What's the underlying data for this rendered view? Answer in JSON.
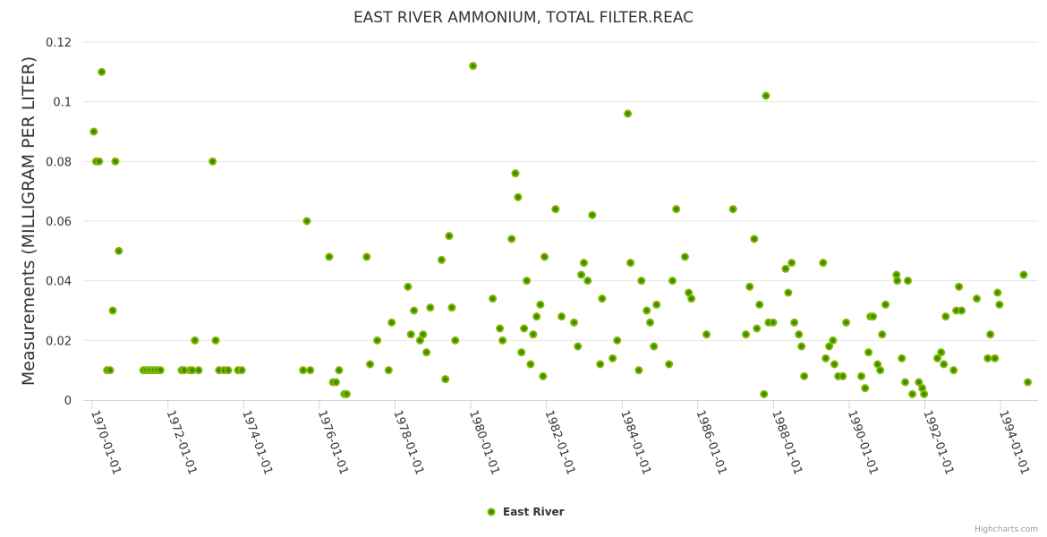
{
  "chart_data": {
    "type": "scatter",
    "title": "EAST RIVER AMMONIUM, TOTAL FILTER.REAC",
    "xlabel": "",
    "ylabel": "Measurements (MILLIGRAM PER LITER)",
    "ylim": [
      0,
      0.12
    ],
    "xlim": [
      1969.76,
      1994.99
    ],
    "yticks": [
      0,
      0.02,
      0.04,
      0.06,
      0.08,
      0.1,
      0.12
    ],
    "ytick_labels": [
      "0",
      "0.02",
      "0.04",
      "0.06",
      "0.08",
      "0.1",
      "0.12"
    ],
    "xticks": [
      1970,
      1972,
      1974,
      1976,
      1978,
      1980,
      1982,
      1984,
      1986,
      1988,
      1990,
      1992,
      1994
    ],
    "xtick_labels": [
      "1970-01-01",
      "1972-01-01",
      "1974-01-01",
      "1976-01-01",
      "1978-01-01",
      "1980-01-01",
      "1982-01-01",
      "1984-01-01",
      "1986-01-01",
      "1988-01-01",
      "1990-01-01",
      "1992-01-01",
      "1994-01-01"
    ],
    "grid": true,
    "legend_position": "bottom-center",
    "series": [
      {
        "name": "East River",
        "color": "#7fb800",
        "center_color": "#3d8c00",
        "points": [
          [
            1970.04,
            0.09
          ],
          [
            1970.1,
            0.08
          ],
          [
            1970.18,
            0.08
          ],
          [
            1970.25,
            0.11
          ],
          [
            1970.39,
            0.01
          ],
          [
            1970.47,
            0.01
          ],
          [
            1970.54,
            0.03
          ],
          [
            1970.61,
            0.08
          ],
          [
            1970.7,
            0.05
          ],
          [
            1971.35,
            0.01
          ],
          [
            1971.43,
            0.01
          ],
          [
            1971.5,
            0.01
          ],
          [
            1971.57,
            0.01
          ],
          [
            1971.64,
            0.01
          ],
          [
            1971.72,
            0.01
          ],
          [
            1971.8,
            0.01
          ],
          [
            1972.36,
            0.01
          ],
          [
            1972.43,
            0.01
          ],
          [
            1972.58,
            0.01
          ],
          [
            1972.64,
            0.01
          ],
          [
            1972.71,
            0.02
          ],
          [
            1972.81,
            0.01
          ],
          [
            1973.18,
            0.08
          ],
          [
            1973.26,
            0.02
          ],
          [
            1973.35,
            0.01
          ],
          [
            1973.48,
            0.01
          ],
          [
            1973.59,
            0.01
          ],
          [
            1973.85,
            0.01
          ],
          [
            1973.95,
            0.01
          ],
          [
            1975.57,
            0.01
          ],
          [
            1975.67,
            0.06
          ],
          [
            1975.76,
            0.01
          ],
          [
            1976.26,
            0.048
          ],
          [
            1976.36,
            0.006
          ],
          [
            1976.44,
            0.006
          ],
          [
            1976.52,
            0.01
          ],
          [
            1976.66,
            0.002
          ],
          [
            1976.72,
            0.002
          ],
          [
            1977.25,
            0.048
          ],
          [
            1977.34,
            0.012
          ],
          [
            1977.53,
            0.02
          ],
          [
            1977.83,
            0.01
          ],
          [
            1977.91,
            0.026
          ],
          [
            1978.34,
            0.038
          ],
          [
            1978.42,
            0.022
          ],
          [
            1978.5,
            0.03
          ],
          [
            1978.66,
            0.02
          ],
          [
            1978.74,
            0.022
          ],
          [
            1978.83,
            0.016
          ],
          [
            1978.93,
            0.031
          ],
          [
            1979.23,
            0.047
          ],
          [
            1979.33,
            0.007
          ],
          [
            1979.43,
            0.055
          ],
          [
            1979.5,
            0.031
          ],
          [
            1979.59,
            0.02
          ],
          [
            1980.06,
            0.112
          ],
          [
            1980.58,
            0.034
          ],
          [
            1980.77,
            0.024
          ],
          [
            1980.84,
            0.02
          ],
          [
            1981.08,
            0.054
          ],
          [
            1981.18,
            0.076
          ],
          [
            1981.25,
            0.068
          ],
          [
            1981.34,
            0.016
          ],
          [
            1981.41,
            0.024
          ],
          [
            1981.48,
            0.04
          ],
          [
            1981.58,
            0.012
          ],
          [
            1981.65,
            0.022
          ],
          [
            1981.74,
            0.028
          ],
          [
            1981.84,
            0.032
          ],
          [
            1981.91,
            0.008
          ],
          [
            1981.95,
            0.048
          ],
          [
            1982.24,
            0.064
          ],
          [
            1982.4,
            0.028
          ],
          [
            1982.73,
            0.026
          ],
          [
            1982.83,
            0.018
          ],
          [
            1982.92,
            0.042
          ],
          [
            1982.99,
            0.046
          ],
          [
            1983.09,
            0.04
          ],
          [
            1983.21,
            0.062
          ],
          [
            1983.42,
            0.012
          ],
          [
            1983.47,
            0.034
          ],
          [
            1983.75,
            0.014
          ],
          [
            1983.87,
            0.02
          ],
          [
            1984.15,
            0.096
          ],
          [
            1984.22,
            0.046
          ],
          [
            1984.44,
            0.01
          ],
          [
            1984.51,
            0.04
          ],
          [
            1984.65,
            0.03
          ],
          [
            1984.74,
            0.026
          ],
          [
            1984.84,
            0.018
          ],
          [
            1984.91,
            0.032
          ],
          [
            1985.24,
            0.012
          ],
          [
            1985.33,
            0.04
          ],
          [
            1985.43,
            0.064
          ],
          [
            1985.66,
            0.048
          ],
          [
            1985.76,
            0.036
          ],
          [
            1985.83,
            0.034
          ],
          [
            1986.23,
            0.022
          ],
          [
            1986.93,
            0.064
          ],
          [
            1987.27,
            0.022
          ],
          [
            1987.37,
            0.038
          ],
          [
            1987.49,
            0.054
          ],
          [
            1987.56,
            0.024
          ],
          [
            1987.63,
            0.032
          ],
          [
            1987.75,
            0.002
          ],
          [
            1987.8,
            0.102
          ],
          [
            1987.87,
            0.026
          ],
          [
            1987.99,
            0.026
          ],
          [
            1988.32,
            0.044
          ],
          [
            1988.39,
            0.036
          ],
          [
            1988.48,
            0.046
          ],
          [
            1988.55,
            0.026
          ],
          [
            1988.67,
            0.022
          ],
          [
            1988.74,
            0.018
          ],
          [
            1988.81,
            0.008
          ],
          [
            1989.31,
            0.046
          ],
          [
            1989.38,
            0.014
          ],
          [
            1989.47,
            0.018
          ],
          [
            1989.57,
            0.02
          ],
          [
            1989.61,
            0.012
          ],
          [
            1989.71,
            0.008
          ],
          [
            1989.83,
            0.008
          ],
          [
            1989.92,
            0.026
          ],
          [
            1990.32,
            0.008
          ],
          [
            1990.42,
            0.004
          ],
          [
            1990.51,
            0.016
          ],
          [
            1990.56,
            0.028
          ],
          [
            1990.63,
            0.028
          ],
          [
            1990.75,
            0.012
          ],
          [
            1990.82,
            0.01
          ],
          [
            1990.87,
            0.022
          ],
          [
            1990.96,
            0.032
          ],
          [
            1991.25,
            0.042
          ],
          [
            1991.27,
            0.04
          ],
          [
            1991.39,
            0.014
          ],
          [
            1991.48,
            0.006
          ],
          [
            1991.55,
            0.04
          ],
          [
            1991.67,
            0.002
          ],
          [
            1991.84,
            0.006
          ],
          [
            1991.93,
            0.004
          ],
          [
            1991.98,
            0.002
          ],
          [
            1992.33,
            0.014
          ],
          [
            1992.43,
            0.016
          ],
          [
            1992.5,
            0.012
          ],
          [
            1992.55,
            0.028
          ],
          [
            1992.76,
            0.01
          ],
          [
            1992.83,
            0.03
          ],
          [
            1992.9,
            0.038
          ],
          [
            1992.97,
            0.03
          ],
          [
            1993.37,
            0.034
          ],
          [
            1993.66,
            0.014
          ],
          [
            1993.73,
            0.022
          ],
          [
            1993.85,
            0.014
          ],
          [
            1993.92,
            0.036
          ],
          [
            1993.97,
            0.032
          ],
          [
            1994.61,
            0.042
          ],
          [
            1994.72,
            0.006
          ]
        ]
      }
    ]
  },
  "credits": "Highcharts.com"
}
